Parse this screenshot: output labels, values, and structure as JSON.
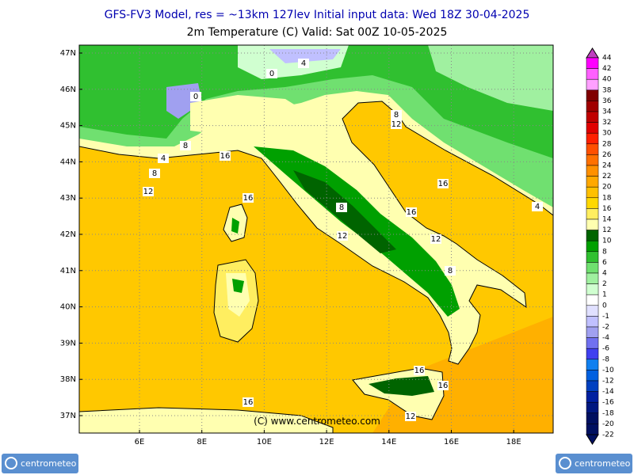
{
  "header": {
    "line1": "GFS-FV3 Model, res = ~13km 127lev    Initial input data: Wed 18Z 30-04-2025",
    "line2": "2m Temperature (C)  Valid: Sat 00Z 10-05-2025"
  },
  "map": {
    "lat_labels": [
      "47N",
      "46N",
      "45N",
      "44N",
      "43N",
      "42N",
      "41N",
      "40N",
      "39N",
      "38N",
      "37N"
    ],
    "lon_labels": [
      "6E",
      "8E",
      "10E",
      "12E",
      "14E",
      "16E",
      "18E"
    ],
    "contour_labels": [
      "4",
      "0",
      "0",
      "8",
      "12",
      "8",
      "4",
      "8",
      "16",
      "12",
      "16",
      "16",
      "8",
      "16",
      "4",
      "12",
      "12",
      "8",
      "16",
      "16",
      "16",
      "12"
    ],
    "credit": "(C) www.centrometeo.com"
  },
  "colorbar": {
    "labels": [
      44,
      42,
      40,
      38,
      36,
      34,
      32,
      30,
      28,
      26,
      24,
      22,
      20,
      18,
      16,
      14,
      12,
      10,
      8,
      6,
      4,
      2,
      1,
      0,
      -1,
      -2,
      -4,
      -6,
      -8,
      -10,
      -12,
      -14,
      -16,
      -18,
      -20,
      -22
    ],
    "colors": [
      "#c040c0",
      "#ff00ff",
      "#ff60ff",
      "#ffa0ff",
      "#800000",
      "#a00000",
      "#c00000",
      "#e00000",
      "#ff2000",
      "#ff5000",
      "#ff7000",
      "#ff9000",
      "#ffa800",
      "#ffc000",
      "#ffd800",
      "#ffee60",
      "#ffffb0",
      "#006400",
      "#00a000",
      "#30c030",
      "#70e070",
      "#a0f0a0",
      "#d0ffd0",
      "#ffffff",
      "#e0e0ff",
      "#c0c0ff",
      "#a0a0f0",
      "#7070f0",
      "#4040f0",
      "#1080f0",
      "#0060e0",
      "#0040c0",
      "#0020a0",
      "#001880",
      "#001060"
    ]
  },
  "logos": {
    "left": "centrometeo",
    "right": "centrometeo"
  }
}
